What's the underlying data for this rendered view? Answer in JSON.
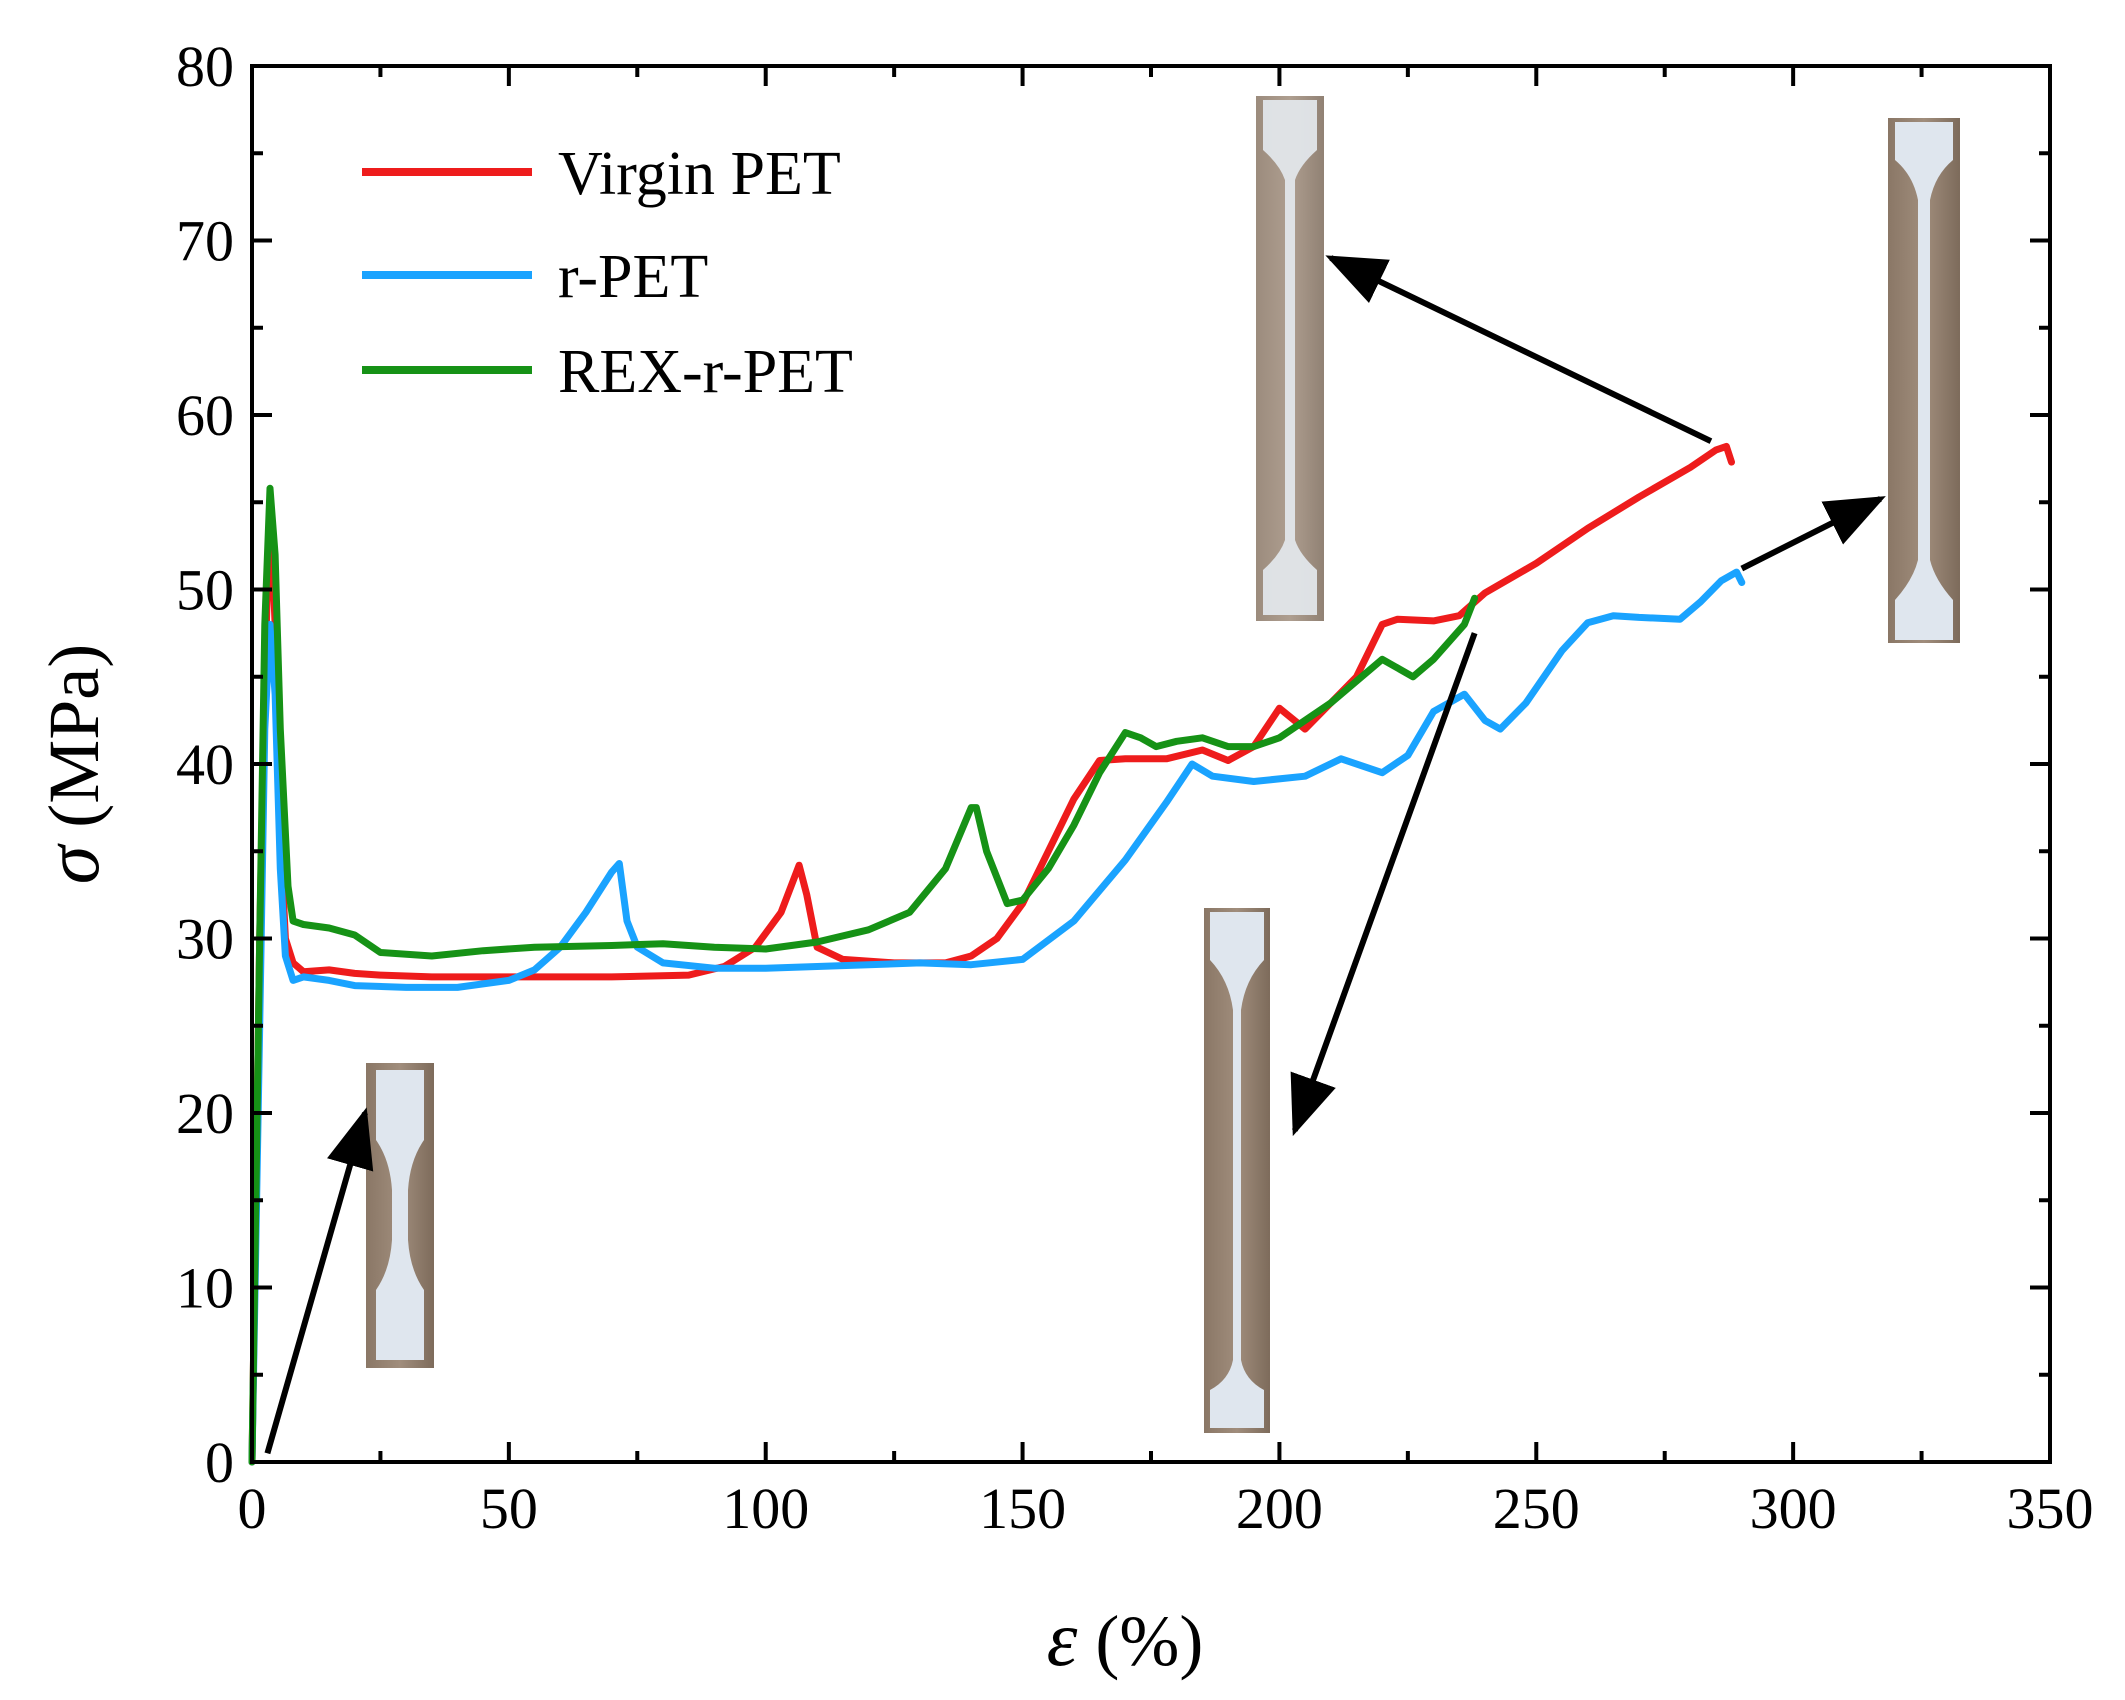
{
  "chart_data": {
    "type": "line",
    "title": "",
    "xlabel": {
      "symbol": "ε",
      "unit": "(%)"
    },
    "ylabel": {
      "symbol": "σ",
      "unit": "(MPa)"
    },
    "xlim": [
      0,
      350
    ],
    "ylim": [
      0,
      80
    ],
    "xticks": [
      0,
      50,
      100,
      150,
      200,
      250,
      300,
      350
    ],
    "yticks": [
      0,
      10,
      20,
      30,
      40,
      50,
      60,
      70,
      80
    ],
    "x_minor_step": 25,
    "y_minor_step": 5,
    "grid": false,
    "legend_position": "top-left",
    "series": [
      {
        "name": "Virgin PET",
        "color": "#ee1c1c",
        "points": [
          [
            0,
            0
          ],
          [
            1.5,
            30
          ],
          [
            2.5,
            45
          ],
          [
            3.5,
            55
          ],
          [
            4.5,
            48
          ],
          [
            5.5,
            36
          ],
          [
            6.5,
            30
          ],
          [
            8,
            28.6
          ],
          [
            10,
            28.1
          ],
          [
            15,
            28.2
          ],
          [
            20,
            28
          ],
          [
            25,
            27.9
          ],
          [
            35,
            27.8
          ],
          [
            50,
            27.8
          ],
          [
            70,
            27.8
          ],
          [
            85,
            27.9
          ],
          [
            92,
            28.4
          ],
          [
            98,
            29.5
          ],
          [
            103,
            31.5
          ],
          [
            106.5,
            34.2
          ],
          [
            108,
            32.5
          ],
          [
            110,
            29.5
          ],
          [
            115,
            28.8
          ],
          [
            125,
            28.6
          ],
          [
            135,
            28.6
          ],
          [
            140,
            29
          ],
          [
            145,
            30
          ],
          [
            150,
            32
          ],
          [
            155,
            35
          ],
          [
            160,
            38
          ],
          [
            165,
            40.2
          ],
          [
            170,
            40.3
          ],
          [
            178,
            40.3
          ],
          [
            185,
            40.8
          ],
          [
            190,
            40.2
          ],
          [
            195,
            41
          ],
          [
            200,
            43.2
          ],
          [
            205,
            42
          ],
          [
            210,
            43.5
          ],
          [
            215,
            45
          ],
          [
            220,
            48
          ],
          [
            223,
            48.3
          ],
          [
            230,
            48.2
          ],
          [
            235,
            48.5
          ],
          [
            240,
            49.8
          ],
          [
            250,
            51.5
          ],
          [
            260,
            53.5
          ],
          [
            270,
            55.3
          ],
          [
            280,
            57
          ],
          [
            285,
            58
          ],
          [
            287,
            58.2
          ],
          [
            288,
            57.3
          ]
        ]
      },
      {
        "name": "r-PET",
        "color": "#1aa3ff",
        "points": [
          [
            0,
            0
          ],
          [
            1.5,
            25
          ],
          [
            2.5,
            42
          ],
          [
            3.5,
            48
          ],
          [
            4.5,
            44
          ],
          [
            5.5,
            34
          ],
          [
            6.5,
            29
          ],
          [
            8,
            27.6
          ],
          [
            10,
            27.8
          ],
          [
            15,
            27.6
          ],
          [
            20,
            27.3
          ],
          [
            30,
            27.2
          ],
          [
            40,
            27.2
          ],
          [
            50,
            27.6
          ],
          [
            55,
            28.2
          ],
          [
            60,
            29.5
          ],
          [
            65,
            31.5
          ],
          [
            70,
            33.8
          ],
          [
            71.5,
            34.3
          ],
          [
            73,
            31
          ],
          [
            75,
            29.5
          ],
          [
            80,
            28.6
          ],
          [
            90,
            28.3
          ],
          [
            100,
            28.3
          ],
          [
            120,
            28.5
          ],
          [
            130,
            28.6
          ],
          [
            140,
            28.5
          ],
          [
            150,
            28.8
          ],
          [
            160,
            31
          ],
          [
            170,
            34.5
          ],
          [
            178,
            37.8
          ],
          [
            183,
            40
          ],
          [
            187,
            39.3
          ],
          [
            195,
            39
          ],
          [
            205,
            39.3
          ],
          [
            212,
            40.3
          ],
          [
            220,
            39.5
          ],
          [
            225,
            40.5
          ],
          [
            230,
            43
          ],
          [
            236,
            44
          ],
          [
            240,
            42.5
          ],
          [
            243,
            42
          ],
          [
            248,
            43.5
          ],
          [
            255,
            46.5
          ],
          [
            260,
            48.1
          ],
          [
            265,
            48.5
          ],
          [
            270,
            48.4
          ],
          [
            278,
            48.3
          ],
          [
            282,
            49.3
          ],
          [
            286,
            50.5
          ],
          [
            289,
            51
          ],
          [
            290,
            50.4
          ]
        ]
      },
      {
        "name": "REX-r-PET",
        "color": "#169216",
        "points": [
          [
            0,
            0
          ],
          [
            1.5,
            30
          ],
          [
            2.5,
            48
          ],
          [
            3.5,
            55.8
          ],
          [
            4.5,
            52
          ],
          [
            5.5,
            42
          ],
          [
            7,
            33
          ],
          [
            8,
            31
          ],
          [
            10,
            30.8
          ],
          [
            15,
            30.6
          ],
          [
            20,
            30.2
          ],
          [
            25,
            29.2
          ],
          [
            35,
            29
          ],
          [
            45,
            29.3
          ],
          [
            55,
            29.5
          ],
          [
            70,
            29.6
          ],
          [
            80,
            29.7
          ],
          [
            90,
            29.5
          ],
          [
            100,
            29.4
          ],
          [
            110,
            29.8
          ],
          [
            120,
            30.5
          ],
          [
            128,
            31.5
          ],
          [
            135,
            34
          ],
          [
            140,
            37.5
          ],
          [
            141,
            37.5
          ],
          [
            143,
            35
          ],
          [
            147,
            32
          ],
          [
            150,
            32.2
          ],
          [
            155,
            34
          ],
          [
            160,
            36.5
          ],
          [
            165,
            39.5
          ],
          [
            170,
            41.8
          ],
          [
            173,
            41.5
          ],
          [
            176,
            41
          ],
          [
            180,
            41.3
          ],
          [
            185,
            41.5
          ],
          [
            190,
            41
          ],
          [
            195,
            41
          ],
          [
            200,
            41.5
          ],
          [
            210,
            43.5
          ],
          [
            220,
            46
          ],
          [
            226,
            45
          ],
          [
            230,
            46
          ],
          [
            236,
            48
          ],
          [
            238,
            49.5
          ]
        ]
      }
    ],
    "annotations": [
      {
        "label": "specimen-before-test",
        "arrow_from": [
          3,
          0.5
        ],
        "arrow_to": [
          22,
          20
        ]
      },
      {
        "label": "specimen-virgin-pet-after-test",
        "arrow_from": [
          284,
          58.5
        ],
        "arrow_to": [
          210,
          69
        ]
      },
      {
        "label": "specimen-rex-r-pet-after-test",
        "arrow_from": [
          238,
          47.5
        ],
        "arrow_to": [
          203,
          19
        ]
      },
      {
        "label": "specimen-r-pet-after-test",
        "arrow_from": [
          290,
          51.2
        ],
        "arrow_to": [
          317,
          55.2
        ]
      }
    ]
  }
}
